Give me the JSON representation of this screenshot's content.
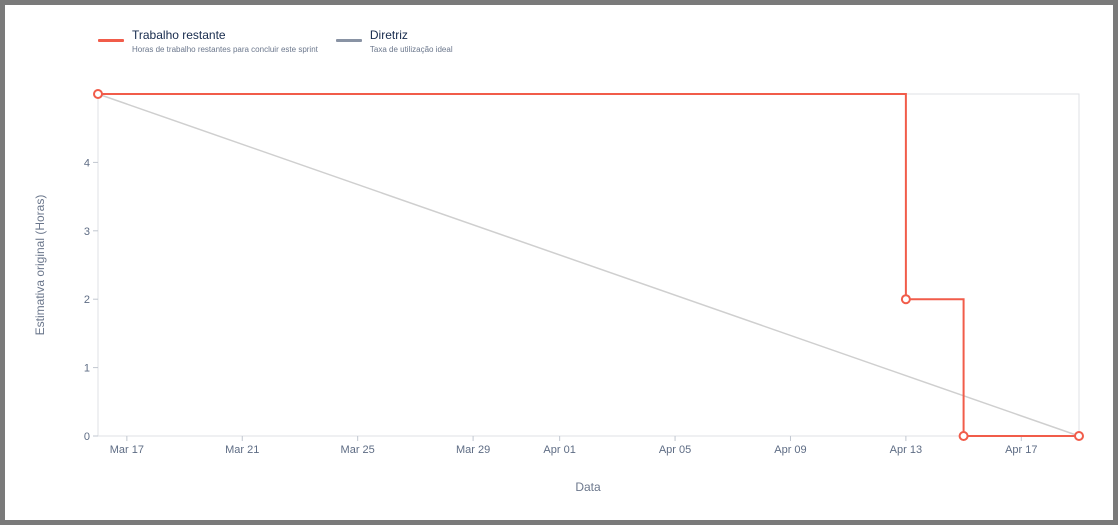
{
  "legend": [
    {
      "title": "Trabalho restante",
      "description": "Horas de trabalho restantes para concluir este sprint",
      "color": "#f15c4a"
    },
    {
      "title": "Diretriz",
      "description": "Taxa de utilização ideal",
      "color": "#8993a4"
    }
  ],
  "chart_data": {
    "type": "line",
    "xlabel": "Data",
    "ylabel": "Estimativa original (Horas)",
    "x_ticks": [
      "Mar 17",
      "Mar 21",
      "Mar 25",
      "Mar 29",
      "Apr 01",
      "Apr 05",
      "Apr 09",
      "Apr 13",
      "Apr 17"
    ],
    "y_ticks": [
      "0",
      "1",
      "2",
      "3",
      "4"
    ],
    "ylim": [
      0,
      5
    ],
    "xlim": [
      "Mar 16",
      "Apr 19"
    ],
    "grid": false,
    "legend_position": "top-left",
    "series": [
      {
        "name": "Trabalho restante",
        "color": "#f15c4a",
        "step": true,
        "points": [
          {
            "x": "Mar 16",
            "y": 5
          },
          {
            "x": "Apr 13",
            "y": 2
          },
          {
            "x": "Apr 15",
            "y": 0
          },
          {
            "x": "Apr 19",
            "y": 0
          }
        ]
      },
      {
        "name": "Diretriz",
        "color": "#cfcfcf",
        "step": false,
        "points": [
          {
            "x": "Mar 16",
            "y": 5
          },
          {
            "x": "Apr 19",
            "y": 0
          }
        ]
      }
    ]
  }
}
